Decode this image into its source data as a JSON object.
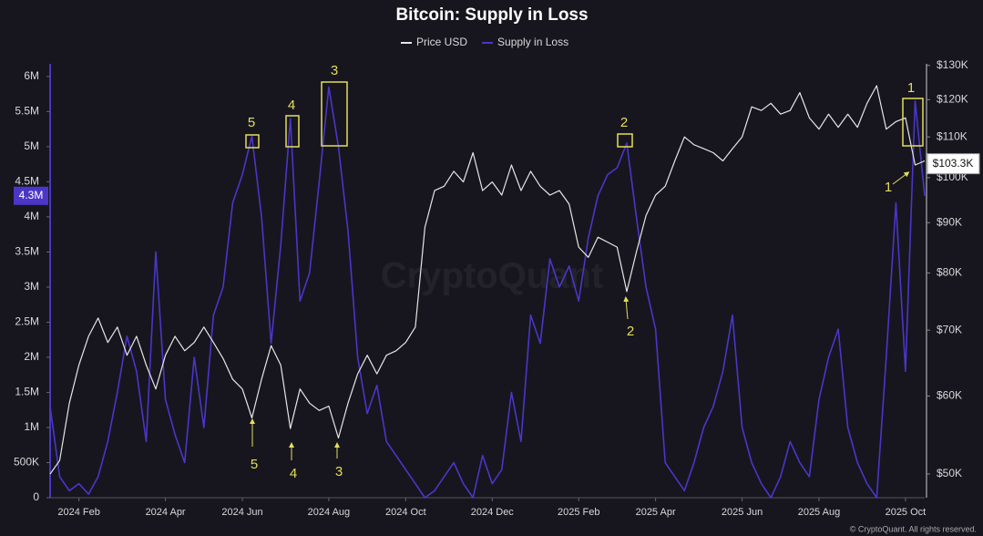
{
  "chart_data": {
    "type": "line",
    "title": "Bitcoin: Supply in Loss",
    "categories": [
      null,
      null,
      null,
      "2024 Feb",
      null,
      null,
      null,
      null,
      null,
      null,
      null,
      null,
      "2024 Apr",
      null,
      null,
      null,
      null,
      null,
      null,
      null,
      "2024 Jun",
      null,
      null,
      null,
      null,
      null,
      null,
      null,
      null,
      "2024 Aug",
      null,
      null,
      null,
      null,
      null,
      null,
      null,
      "2024 Oct",
      null,
      null,
      null,
      null,
      null,
      null,
      null,
      null,
      "2024 Dec",
      null,
      null,
      null,
      null,
      null,
      null,
      null,
      null,
      "2025 Feb",
      null,
      null,
      null,
      null,
      null,
      null,
      null,
      "2025 Apr",
      null,
      null,
      null,
      null,
      null,
      null,
      null,
      null,
      "2025 Jun",
      null,
      null,
      null,
      null,
      null,
      null,
      null,
      "2025 Aug",
      null,
      null,
      null,
      null,
      null,
      null,
      null,
      null,
      "2025 Oct",
      null,
      null
    ],
    "series": [
      {
        "name": "Price USD",
        "color": "#e6e6e6",
        "axis": "y2",
        "values": [
          50000,
          51600,
          59000,
          64500,
          69000,
          72000,
          68000,
          70500,
          66000,
          69000,
          64500,
          61000,
          66000,
          69000,
          66700,
          68000,
          70500,
          68000,
          65500,
          62400,
          61000,
          57000,
          62400,
          67500,
          64500,
          55600,
          61000,
          59000,
          58000,
          58600,
          54400,
          59000,
          63200,
          66000,
          63200,
          66000,
          66700,
          68000,
          70500,
          89000,
          97000,
          98000,
          101500,
          99000,
          106000,
          97000,
          99000,
          96000,
          103000,
          97000,
          101500,
          98000,
          96000,
          97000,
          94000,
          85000,
          83000,
          87000,
          86000,
          85000,
          76600,
          84000,
          91500,
          96000,
          98000,
          104000,
          110000,
          108000,
          107000,
          106000,
          104000,
          107000,
          110000,
          118000,
          117000,
          119000,
          116000,
          117000,
          122000,
          115000,
          112000,
          116000,
          112500,
          116000,
          112500,
          119000,
          124000,
          112000,
          114000,
          115000,
          103000,
          104000
        ]
      },
      {
        "name": "Supply in Loss",
        "color": "#4a36c8",
        "values": [
          1300000,
          300000,
          100000,
          200000,
          50000,
          300000,
          800000,
          1500000,
          2300000,
          1800000,
          800000,
          3500000,
          1400000,
          900000,
          500000,
          2000000,
          1000000,
          2600000,
          3000000,
          4200000,
          4600000,
          5150000,
          4000000,
          2200000,
          3600000,
          5400000,
          2800000,
          3200000,
          4500000,
          5850000,
          5000000,
          3800000,
          2000000,
          1200000,
          1600000,
          800000,
          600000,
          400000,
          200000,
          0,
          100000,
          300000,
          500000,
          200000,
          0,
          600000,
          200000,
          400000,
          1500000,
          800000,
          2600000,
          2200000,
          3400000,
          3000000,
          3300000,
          2800000,
          3700000,
          4300000,
          4600000,
          4700000,
          5050000,
          4000000,
          3000000,
          2400000,
          500000,
          300000,
          100000,
          500000,
          1000000,
          1300000,
          1800000,
          2600000,
          1000000,
          500000,
          200000,
          0,
          300000,
          800000,
          500000,
          300000,
          1400000,
          2000000,
          2400000,
          1000000,
          500000,
          200000,
          0,
          2000000,
          4200000,
          1800000,
          5650000,
          4300000
        ]
      }
    ],
    "ylim": [
      0,
      6180000
    ],
    "yticks": [
      0,
      {
        "value": 500000,
        "label": "500K"
      },
      {
        "value": 1000000,
        "label": "1M"
      },
      {
        "value": 1500000,
        "label": "1.5M"
      },
      {
        "value": 2000000,
        "label": "2M"
      },
      {
        "value": 2500000,
        "label": "2.5M"
      },
      {
        "value": 3000000,
        "label": "3M"
      },
      {
        "value": 3500000,
        "label": "3.5M"
      },
      {
        "value": 4000000,
        "label": "4M"
      },
      {
        "value": 4500000,
        "label": "4.5M"
      },
      {
        "value": 5000000,
        "label": "5M"
      },
      {
        "value": 5500000,
        "label": "5.5M"
      },
      {
        "value": 6000000,
        "label": "6M"
      }
    ],
    "y2lim": [
      47300,
      130500
    ],
    "y2_log": true,
    "y2ticks": [
      {
        "value": 50000,
        "label": "$50K"
      },
      {
        "value": 60000,
        "label": "$60K"
      },
      {
        "value": 70000,
        "label": "$70K"
      },
      {
        "value": 80000,
        "label": "$80K"
      },
      {
        "value": 90000,
        "label": "$90K"
      },
      {
        "value": 100000,
        "label": "$100K"
      },
      {
        "value": 110000,
        "label": "$110K"
      },
      {
        "value": 120000,
        "label": "$120K"
      },
      {
        "value": 130000,
        "label": "$130K"
      }
    ],
    "current_labels": [
      {
        "value": 4300000,
        "label": "4.3M"
      },
      {
        "value": 103300,
        "label": "$103.3K",
        "axis": "y2"
      }
    ],
    "annotations": [
      "5",
      "4",
      "3",
      "2",
      "1",
      "5",
      "4",
      "3",
      "2",
      "1"
    ],
    "watermark": "CryptoQuant",
    "footer": "© CryptoQuant. All rights reserved.",
    "grid": false,
    "legend": "top"
  }
}
